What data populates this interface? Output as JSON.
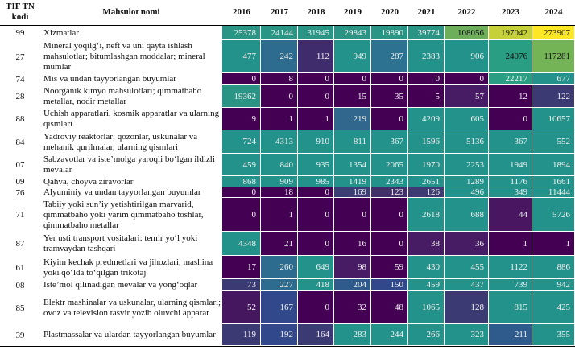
{
  "chart_data": {
    "type": "heatmap",
    "title": "",
    "columns": {
      "code": "TIF TN kodi",
      "name": "Mahsulot nomi"
    },
    "years": [
      "2016",
      "2017",
      "2018",
      "2019",
      "2020",
      "2021",
      "2022",
      "2023",
      "2024"
    ],
    "rows": [
      {
        "code": "99",
        "name": "Xizmatlar",
        "values": [
          25378,
          24144,
          31945,
          29843,
          19890,
          39774,
          108056,
          197042,
          273907
        ]
      },
      {
        "code": "27",
        "name": "Mineral yoqilg‘i, neft va uni qayta ishlash mahsulotlar; bitumlashgan moddalar; mineral mumlar",
        "values": [
          477,
          242,
          112,
          949,
          287,
          2383,
          906,
          24076,
          117281
        ]
      },
      {
        "code": "74",
        "name": "Mis va undan tayyorlangan buyumlar",
        "values": [
          0,
          8,
          0,
          0,
          0,
          0,
          0,
          22217,
          677
        ]
      },
      {
        "code": "28",
        "name": "Noorganik kimyo mahsulotlari; qimmatbaho metallar, nodir metallar",
        "values": [
          19362,
          0,
          0,
          15,
          35,
          5,
          57,
          12,
          122
        ]
      },
      {
        "code": "88",
        "name": "Uchish apparatlari, kosmik apparatlar va ularning qismlari",
        "values": [
          9,
          1,
          1,
          219,
          0,
          4209,
          605,
          0,
          10657
        ]
      },
      {
        "code": "84",
        "name": "Yadroviy reaktorlar; qozonlar, uskunalar va mehanik qurilmalar, ularning qismlari",
        "values": [
          724,
          4313,
          910,
          811,
          367,
          1596,
          5136,
          367,
          552
        ]
      },
      {
        "code": "07",
        "name": "Sabzavotlar va iste’molga yaroqli bo‘lgan ildizli mevalar",
        "values": [
          459,
          840,
          935,
          1354,
          2065,
          1970,
          2253,
          1949,
          1894
        ]
      },
      {
        "code": "09",
        "name": "Qahva, choyva ziravorlar",
        "values": [
          868,
          909,
          985,
          1419,
          2343,
          2651,
          1289,
          1176,
          1661
        ]
      },
      {
        "code": "76",
        "name": "Alyuminiy va undan tayyorlangan buyumlar",
        "values": [
          0,
          18,
          0,
          169,
          123,
          126,
          496,
          349,
          11444
        ]
      },
      {
        "code": "71",
        "name": "Tabiiy yoki sun’iy yetishtirilgan marvarid, qimmatbaho yoki yarim qimmatbaho toshlar, qimmatbaho metallar",
        "values": [
          0,
          1,
          0,
          0,
          0,
          2618,
          688,
          44,
          5726
        ]
      },
      {
        "code": "87",
        "name": "Yer usti transport vositalari: temir yo‘l yoki tramvaydan tashqari",
        "values": [
          4348,
          21,
          0,
          16,
          0,
          38,
          36,
          1,
          1
        ]
      },
      {
        "code": "61",
        "name": "Kiyim kechak predmetlari va jihozlari, mashina yoki qo‘lda to‘qilgan trikotaj",
        "values": [
          17,
          260,
          649,
          98,
          59,
          430,
          455,
          1122,
          886
        ]
      },
      {
        "code": "08",
        "name": "Iste’mol qilinadigan mevalar va yong‘oqlar",
        "values": [
          73,
          227,
          418,
          204,
          150,
          459,
          437,
          739,
          942
        ]
      },
      {
        "code": "85",
        "name": "Elektr mashinalar va uskunalar, ularning qismlari; ovoz va television tasvir yozib oluvchi apparat",
        "values": [
          52,
          167,
          0,
          32,
          48,
          1065,
          128,
          815,
          425
        ]
      },
      {
        "code": "39",
        "name": "Plastmassalar va ulardan tayyorlangan buyumlar",
        "values": [
          119,
          192,
          164,
          283,
          244,
          266,
          323,
          211,
          355
        ]
      }
    ],
    "colormap": "viridis",
    "cell_colors": [
      [
        "#2a9485",
        "#2a9485",
        "#2a9485",
        "#2a9485",
        "#2a9485",
        "#2a9485",
        "#6cae5a",
        "#c6d13a",
        "#fde725"
      ],
      [
        "#23928a",
        "#2d6c8e",
        "#3f2c6d",
        "#23928a",
        "#2d7290",
        "#23928a",
        "#23928a",
        "#2a9e82",
        "#74b356"
      ],
      [
        "#440154",
        "#440154",
        "#440154",
        "#440154",
        "#440154",
        "#440154",
        "#440154",
        "#2a9e82",
        "#23928a"
      ],
      [
        "#2a9485",
        "#440154",
        "#440154",
        "#440154",
        "#440154",
        "#440154",
        "#471c65",
        "#440154",
        "#3b3a73"
      ],
      [
        "#440154",
        "#440154",
        "#440154",
        "#31668d",
        "#440154",
        "#23928a",
        "#23928a",
        "#440154",
        "#23928a"
      ],
      [
        "#23928a",
        "#23928a",
        "#23928a",
        "#23928a",
        "#23928a",
        "#23928a",
        "#23928a",
        "#23928a",
        "#23928a"
      ],
      [
        "#23928a",
        "#23928a",
        "#23928a",
        "#23928a",
        "#23928a",
        "#23928a",
        "#23928a",
        "#23928a",
        "#23928a"
      ],
      [
        "#23928a",
        "#23928a",
        "#23928a",
        "#23928a",
        "#23928a",
        "#23928a",
        "#23928a",
        "#23928a",
        "#23928a"
      ],
      [
        "#440154",
        "#440154",
        "#440154",
        "#3b3f74",
        "#423068",
        "#3d3a74",
        "#23928a",
        "#23928a",
        "#23928a"
      ],
      [
        "#440154",
        "#440154",
        "#440154",
        "#440154",
        "#440154",
        "#23928a",
        "#23928a",
        "#491761",
        "#23928a"
      ],
      [
        "#23928a",
        "#440154",
        "#440154",
        "#440154",
        "#440154",
        "#471c65",
        "#471c65",
        "#440154",
        "#440154"
      ],
      [
        "#440154",
        "#2d6c8e",
        "#23928a",
        "#471c65",
        "#440154",
        "#23928a",
        "#23928a",
        "#23928a",
        "#23928a"
      ],
      [
        "#3b3a73",
        "#2d6c8e",
        "#23928a",
        "#2f5b8c",
        "#31498a",
        "#23928a",
        "#23928a",
        "#23928a",
        "#23928a"
      ],
      [
        "#45175f",
        "#31498a",
        "#440154",
        "#440154",
        "#440154",
        "#23928a",
        "#3b3a73",
        "#23928a",
        "#23928a"
      ],
      [
        "#3b3a73",
        "#31498a",
        "#3b3a73",
        "#23928a",
        "#23928a",
        "#23928a",
        "#23928a",
        "#2f5b8c",
        "#23928a"
      ]
    ],
    "dark_text_years_in_first_row": [
      "2022",
      "2023",
      "2024"
    ],
    "dark_text_cells": [
      [
        0,
        6
      ],
      [
        0,
        7
      ],
      [
        0,
        8
      ],
      [
        1,
        7
      ],
      [
        1,
        8
      ]
    ]
  }
}
